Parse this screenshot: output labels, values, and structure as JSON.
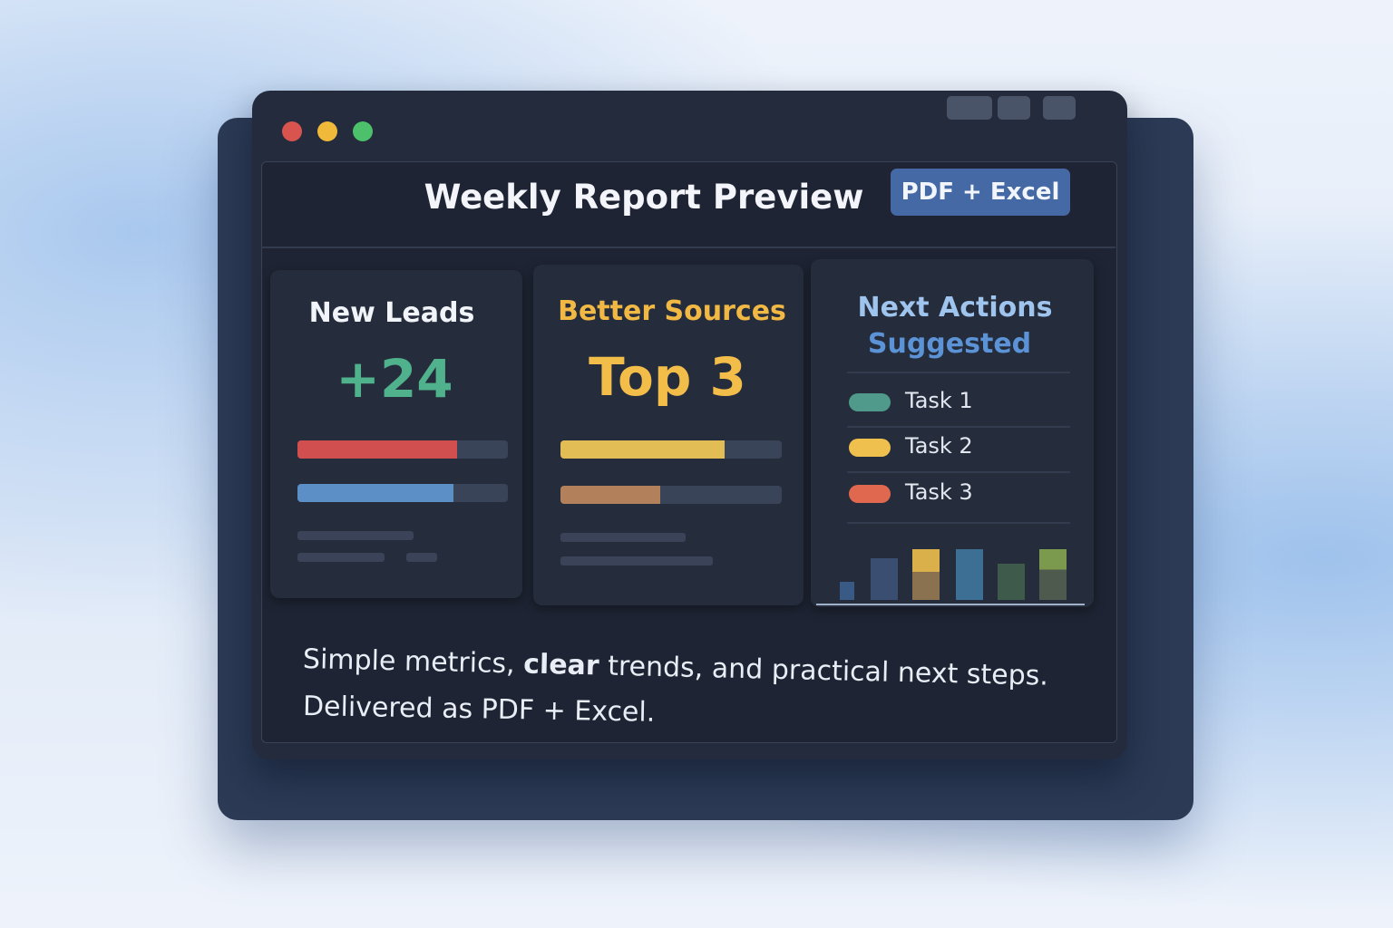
{
  "header": {
    "title": "Weekly Report Preview",
    "badge": "PDF + Excel"
  },
  "cards": [
    {
      "title": "New Leads",
      "value": "+24"
    },
    {
      "title": "Better Sources",
      "value": "Top 3"
    },
    {
      "title": "Next Actions",
      "subtitle": "Suggested",
      "tasks": [
        "Task 1",
        "Task 2",
        "Task 3"
      ]
    }
  ],
  "footer": {
    "line1": [
      "Simple metrics,",
      "clear",
      "trends, and practical next steps."
    ],
    "line2": "Delivered as PDF + Excel."
  }
}
